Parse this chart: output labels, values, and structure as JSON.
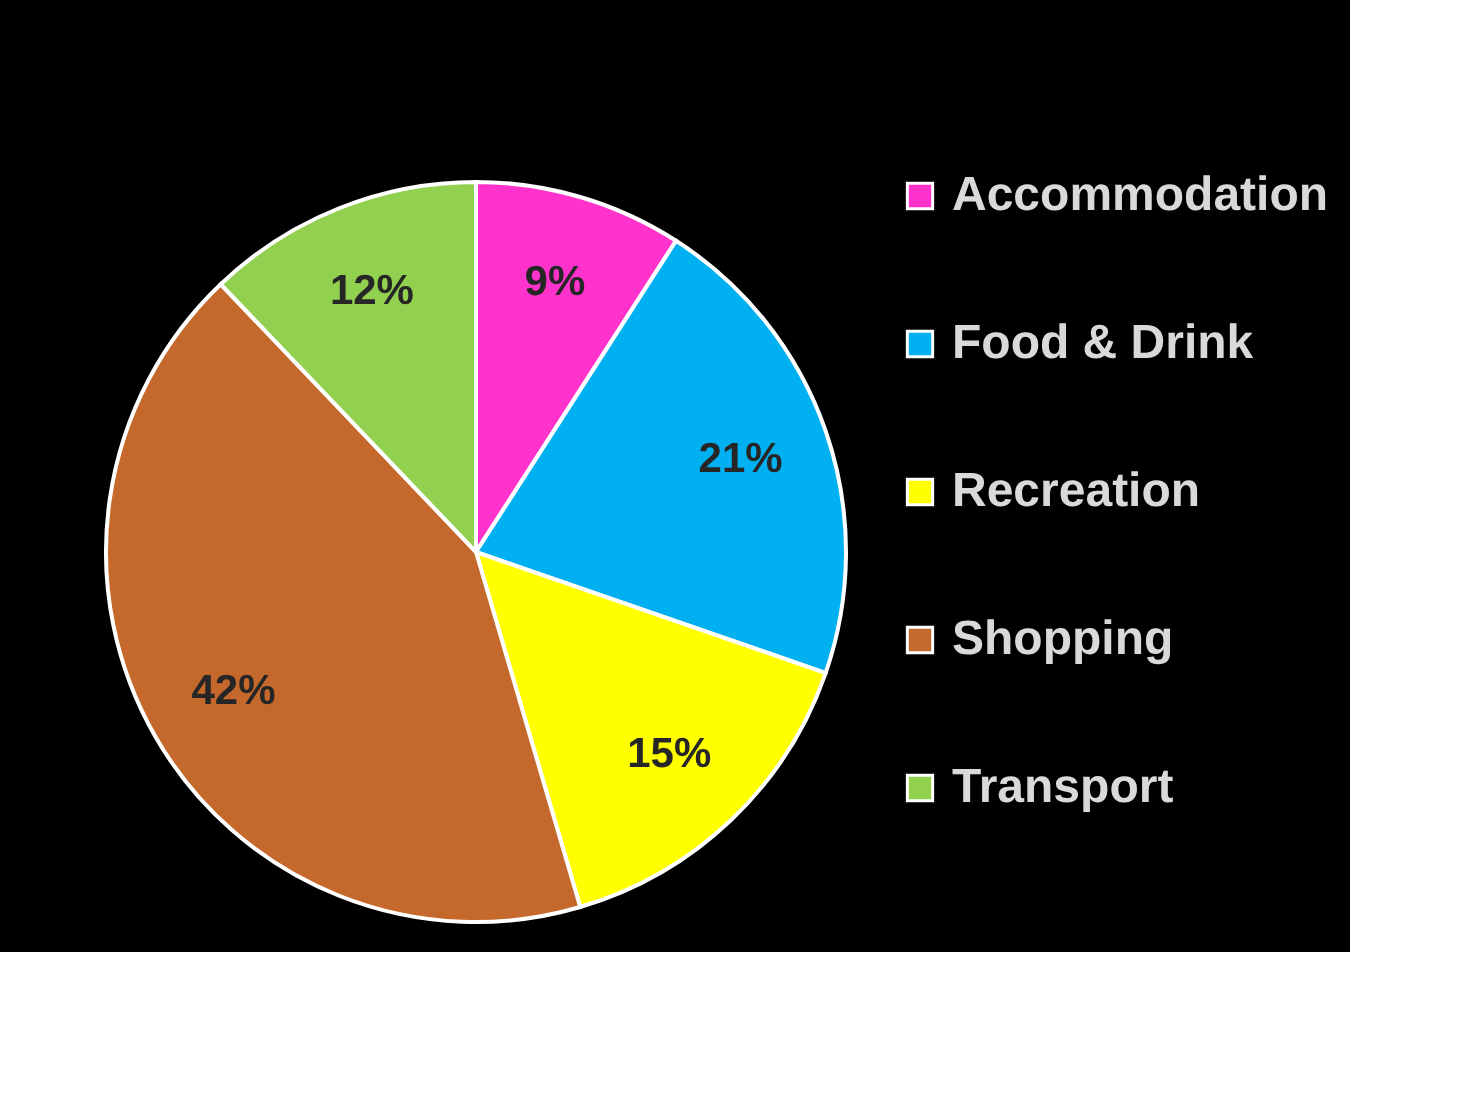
{
  "chart_data": {
    "type": "pie",
    "categories": [
      "Accommodation",
      "Food & Drink",
      "Recreation",
      "Shopping",
      "Transport"
    ],
    "values": [
      9,
      21,
      15,
      42,
      12
    ],
    "colors": [
      "#ff33cc",
      "#00b0f0",
      "#ffff00",
      "#c5682c",
      "#92d050"
    ],
    "value_labels": [
      "9%",
      "21%",
      "15%",
      "42%",
      "12%"
    ],
    "legend": "right"
  }
}
